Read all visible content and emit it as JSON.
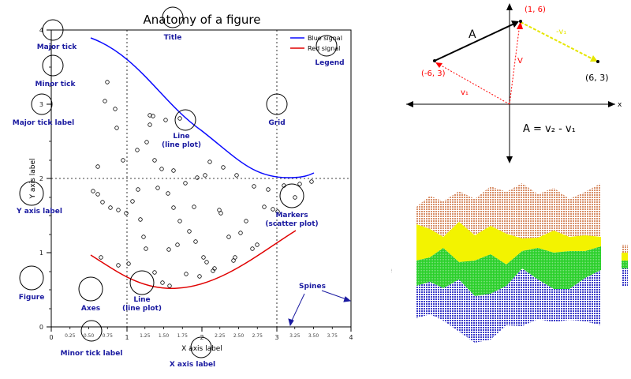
{
  "anatomy": {
    "title": "Anatomy of a figure",
    "xlabel": "X axis label",
    "ylabel": "Y axis label",
    "legend": [
      "Blue signal",
      "Red signal"
    ],
    "x_ticks": [
      "0",
      "1",
      "2",
      "3",
      "4"
    ],
    "y_ticks": [
      "0",
      "1",
      "2",
      "3",
      "4"
    ],
    "minor_x_ticks": [
      "0.25",
      "0.50",
      "0.75",
      "1.25",
      "1.50",
      "1.75",
      "2.25",
      "2.50",
      "2.75",
      "3.25",
      "3.50",
      "3.75"
    ],
    "annotations": {
      "title": "Title",
      "major_tick": "Major tick",
      "minor_tick": "Minor tick",
      "major_tick_label": "Major tick label",
      "grid": "Grid",
      "line1_a": "Line",
      "line1_b": "(line plot)",
      "y_axis_label": "Y axis label",
      "markers_a": "Markers",
      "markers_b": "(scatter plot)",
      "figure": "Figure",
      "axes": "Axes",
      "line2_a": "Line",
      "line2_b": "(line plot)",
      "spines": "Spines",
      "minor_tick_label": "Minor tick label",
      "x_axis_label": "X axis label",
      "legend": "Legend"
    },
    "colors": {
      "blue": "#0a0aff",
      "red": "#e00000",
      "anno": "#1a1aa0"
    }
  },
  "vector": {
    "label_A": "A",
    "label_v": "V",
    "label_v1": "v₁",
    "label_minus_v1": "-v₁",
    "point_1": "(-6, 3)",
    "point_2": "(1, 6)",
    "point_3": "(6, 3)",
    "axis_x": "x",
    "equation": "A  =  v₂ - v₁",
    "colors": {
      "black": "#000000",
      "red": "#ff0000",
      "yellow": "#e6e600"
    }
  },
  "area_chart": {
    "ylabel": "...",
    "series_colors": [
      "#4444cc",
      "#22cc22",
      "#eeee00",
      "#e0a080"
    ]
  }
}
